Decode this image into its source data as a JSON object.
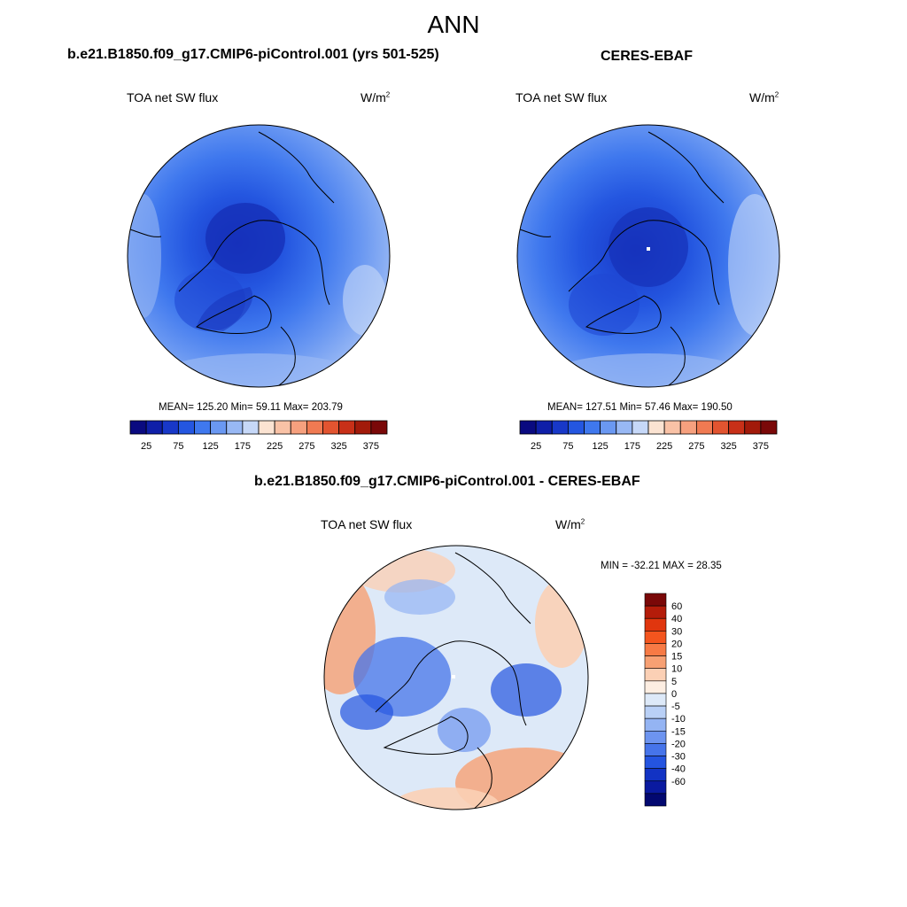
{
  "figure": {
    "title": "ANN"
  },
  "panels": [
    {
      "id": "model",
      "title": "b.e21.B1850.f09_g17.CMIP6-piControl.001 (yrs 501-525)",
      "variable": "TOA net SW flux",
      "units_base": "W/m",
      "units_exp": "2",
      "stats": "MEAN= 125.20  Min=  59.11  Max= 203.79",
      "colorbar": {
        "colors": [
          "#0a0a80",
          "#0f1fa8",
          "#1838c8",
          "#2456e0",
          "#3f78ee",
          "#6a98f2",
          "#98b8f4",
          "#c6d8f8",
          "#fbe3d2",
          "#f9c2a6",
          "#f6a07e",
          "#f07a52",
          "#e25430",
          "#c83018",
          "#a21a0a",
          "#7a0808"
        ],
        "ticks": [
          "25",
          "75",
          "125",
          "175",
          "225",
          "275",
          "325",
          "375"
        ]
      }
    },
    {
      "id": "obs",
      "title": "CERES-EBAF",
      "variable": "TOA net SW flux",
      "units_base": "W/m",
      "units_exp": "2",
      "stats": "MEAN= 127.51  Min=  57.46  Max= 190.50",
      "colorbar": {
        "colors": [
          "#0a0a80",
          "#0f1fa8",
          "#1838c8",
          "#2456e0",
          "#3f78ee",
          "#6a98f2",
          "#98b8f4",
          "#c6d8f8",
          "#fbe3d2",
          "#f9c2a6",
          "#f6a07e",
          "#f07a52",
          "#e25430",
          "#c83018",
          "#a21a0a",
          "#7a0808"
        ],
        "ticks": [
          "25",
          "75",
          "125",
          "175",
          "225",
          "275",
          "325",
          "375"
        ]
      }
    },
    {
      "id": "diff",
      "title": "b.e21.B1850.f09_g17.CMIP6-piControl.001 - CERES-EBAF",
      "variable": "TOA net SW flux",
      "units_base": "W/m",
      "units_exp": "2",
      "stats": "MIN = -32.21 MAX =  28.35",
      "colorbar": {
        "colors": [
          "#7a0808",
          "#b41c0a",
          "#e0360e",
          "#f4551e",
          "#f77a45",
          "#f7a073",
          "#fbd0b5",
          "#fdeee2",
          "#dde9f8",
          "#b9d0f6",
          "#94b4f3",
          "#6d94f0",
          "#4674ea",
          "#2454e0",
          "#1233c4",
          "#0a1aa0",
          "#020870"
        ],
        "ticks": [
          "60",
          "40",
          "30",
          "20",
          "15",
          "10",
          "5",
          "0",
          "-5",
          "-10",
          "-15",
          "-20",
          "-30",
          "-40",
          "-60"
        ]
      }
    }
  ]
}
